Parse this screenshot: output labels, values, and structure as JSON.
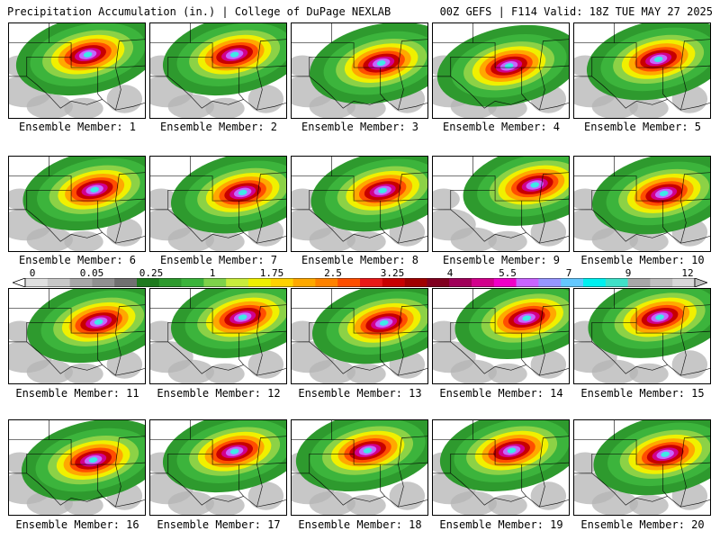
{
  "header": {
    "left": "Precipitation Accumulation (in.) | College of DuPage NEXLAB",
    "right": "00Z GEFS | F114 Valid: 18Z TUE MAY 27 2025"
  },
  "colorbar": {
    "tick_labels": [
      "0",
      "0.05",
      "0.25",
      "1",
      "1.75",
      "2.5",
      "3.25",
      "4",
      "5.5",
      "7",
      "9",
      "12"
    ],
    "colors": [
      "#e0e0e0",
      "#c8c8c8",
      "#a8a8a8",
      "#909090",
      "#707070",
      "#1e7a1e",
      "#2e9a2e",
      "#3cb43c",
      "#7ed24a",
      "#c8ec3c",
      "#f0f000",
      "#ffd200",
      "#ffa800",
      "#ff8200",
      "#ff4e00",
      "#e81818",
      "#c80000",
      "#a00000",
      "#800020",
      "#a0005a",
      "#d2008c",
      "#f000c8",
      "#c864ff",
      "#9696ff",
      "#64c8ff",
      "#00f0f0",
      "#40e0c8",
      "#a8a8a8",
      "#c0c0c0",
      "#d8d8d8"
    ]
  },
  "members": [
    {
      "label": "Ensemble Member: 1",
      "core": [
        0.58,
        0.33
      ]
    },
    {
      "label": "Ensemble Member: 2",
      "core": [
        0.62,
        0.33
      ]
    },
    {
      "label": "Ensemble Member: 3",
      "core": [
        0.66,
        0.42
      ]
    },
    {
      "label": "Ensemble Member: 4",
      "core": [
        0.56,
        0.45
      ]
    },
    {
      "label": "Ensemble Member: 5",
      "core": [
        0.62,
        0.38
      ]
    },
    {
      "label": "Ensemble Member: 6",
      "core": [
        0.63,
        0.35
      ]
    },
    {
      "label": "Ensemble Member: 7",
      "core": [
        0.68,
        0.38
      ]
    },
    {
      "label": "Ensemble Member: 8",
      "core": [
        0.67,
        0.36
      ]
    },
    {
      "label": "Ensemble Member: 9",
      "core": [
        0.75,
        0.3
      ]
    },
    {
      "label": "Ensemble Member: 10",
      "core": [
        0.66,
        0.39
      ]
    },
    {
      "label": "Ensemble Member: 11",
      "core": [
        0.66,
        0.35
      ]
    },
    {
      "label": "Ensemble Member: 12",
      "core": [
        0.68,
        0.3
      ]
    },
    {
      "label": "Ensemble Member: 13",
      "core": [
        0.68,
        0.36
      ]
    },
    {
      "label": "Ensemble Member: 14",
      "core": [
        0.69,
        0.31
      ]
    },
    {
      "label": "Ensemble Member: 15",
      "core": [
        0.63,
        0.3
      ]
    },
    {
      "label": "Ensemble Member: 16",
      "core": [
        0.62,
        0.42
      ]
    },
    {
      "label": "Ensemble Member: 17",
      "core": [
        0.62,
        0.33
      ]
    },
    {
      "label": "Ensemble Member: 18",
      "core": [
        0.56,
        0.32
      ]
    },
    {
      "label": "Ensemble Member: 19",
      "core": [
        0.58,
        0.32
      ]
    },
    {
      "label": "Ensemble Member: 20",
      "core": [
        0.67,
        0.36
      ]
    }
  ]
}
